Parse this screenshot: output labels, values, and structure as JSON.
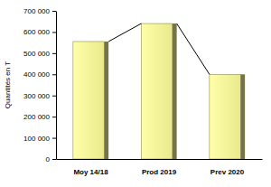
{
  "chart_data": {
    "type": "bar",
    "y_label": "Quantités en T",
    "categories": [
      "Moy 14/18",
      "Prod 2019",
      "Prev 2020"
    ],
    "values": [
      555000,
      640000,
      400000
    ],
    "color": "#ffff99",
    "ylim": [
      0,
      700000
    ],
    "yticks": [
      0,
      {
        "value": 100000,
        "label": "100 000"
      },
      {
        "value": 200000,
        "label": "200 000"
      },
      {
        "value": 300000,
        "label": "300 000"
      },
      {
        "value": 400000,
        "label": "400 000"
      },
      {
        "value": 500000,
        "label": "500 000"
      },
      {
        "value": 600000,
        "label": "600 000"
      },
      {
        "value": 700000,
        "label": "700 000"
      }
    ],
    "grid": false
  }
}
